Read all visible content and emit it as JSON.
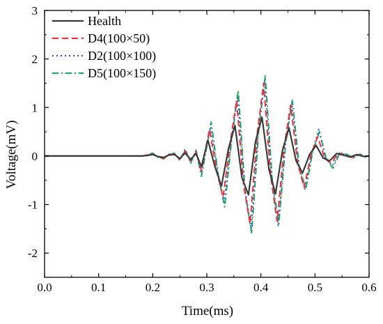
{
  "chart_data": {
    "type": "line",
    "title": "",
    "xlabel": "Time(ms)",
    "ylabel": "Voltage(mV)",
    "xlim": [
      0.0,
      0.6
    ],
    "ylim": [
      -2.5,
      3.0
    ],
    "xticks": [
      "0.0",
      "0.1",
      "0.2",
      "0.3",
      "0.4",
      "0.5",
      "0.6"
    ],
    "yticks": [
      "-2",
      "-1",
      "0",
      "1",
      "2",
      "3"
    ],
    "grid": false,
    "legend_position": "top-left",
    "series": [
      {
        "name": "Health",
        "color": "#3a3a3a",
        "dash": "solid",
        "x": [
          0.0,
          0.15,
          0.18,
          0.19,
          0.2,
          0.21,
          0.22,
          0.23,
          0.24,
          0.25,
          0.26,
          0.27,
          0.28,
          0.29,
          0.302,
          0.315,
          0.327,
          0.34,
          0.352,
          0.365,
          0.377,
          0.39,
          0.402,
          0.415,
          0.427,
          0.44,
          0.452,
          0.465,
          0.477,
          0.49,
          0.502,
          0.515,
          0.527,
          0.54,
          0.552,
          0.565,
          0.577,
          0.59,
          0.6
        ],
        "y": [
          0.0,
          0.0,
          0.0,
          0.01,
          0.03,
          -0.01,
          -0.03,
          0.02,
          0.03,
          -0.05,
          0.06,
          -0.07,
          0.05,
          -0.22,
          0.33,
          -0.22,
          -0.62,
          0.15,
          0.63,
          -0.45,
          -0.8,
          0.3,
          0.8,
          -0.28,
          -0.78,
          0.12,
          0.58,
          -0.1,
          -0.35,
          0.03,
          0.22,
          -0.04,
          -0.1,
          0.05,
          0.02,
          -0.02,
          0.03,
          -0.01,
          0.0
        ]
      },
      {
        "name": "D4(100×50)",
        "color": "#e8343a",
        "dash": "dashed",
        "x": [
          0.0,
          0.15,
          0.18,
          0.19,
          0.2,
          0.21,
          0.22,
          0.23,
          0.24,
          0.25,
          0.26,
          0.27,
          0.28,
          0.29,
          0.305,
          0.318,
          0.33,
          0.343,
          0.355,
          0.368,
          0.38,
          0.393,
          0.405,
          0.418,
          0.43,
          0.443,
          0.455,
          0.468,
          0.48,
          0.493,
          0.505,
          0.518,
          0.53,
          0.543,
          0.555,
          0.568,
          0.58,
          0.59,
          0.6
        ],
        "y": [
          0.0,
          0.0,
          0.0,
          0.02,
          0.04,
          -0.02,
          -0.05,
          0.03,
          0.04,
          -0.07,
          0.1,
          -0.1,
          0.08,
          -0.3,
          0.55,
          -0.3,
          -0.85,
          0.25,
          1.15,
          -0.6,
          -1.4,
          0.45,
          1.5,
          -0.4,
          -1.35,
          0.2,
          1.05,
          -0.15,
          -0.65,
          0.05,
          0.4,
          -0.05,
          -0.15,
          0.06,
          0.02,
          -0.03,
          0.03,
          -0.01,
          0.0
        ]
      },
      {
        "name": "D2(100×100)",
        "color": "#2b5fce",
        "dash": "dotted",
        "x": [
          0.0,
          0.15,
          0.18,
          0.19,
          0.2,
          0.21,
          0.22,
          0.23,
          0.24,
          0.25,
          0.26,
          0.27,
          0.28,
          0.29,
          0.307,
          0.32,
          0.332,
          0.345,
          0.357,
          0.37,
          0.382,
          0.395,
          0.407,
          0.42,
          0.432,
          0.445,
          0.457,
          0.47,
          0.482,
          0.495,
          0.507,
          0.52,
          0.532,
          0.545,
          0.557,
          0.57,
          0.582,
          0.592,
          0.6
        ],
        "y": [
          0.0,
          0.0,
          0.0,
          0.02,
          0.05,
          -0.02,
          -0.05,
          0.03,
          0.05,
          -0.08,
          0.12,
          -0.12,
          0.1,
          -0.35,
          0.6,
          -0.32,
          -0.95,
          0.3,
          1.2,
          -0.65,
          -1.5,
          0.5,
          1.55,
          -0.45,
          -1.45,
          0.25,
          1.1,
          -0.2,
          -0.7,
          0.08,
          0.55,
          -0.06,
          -0.2,
          0.06,
          0.03,
          -0.03,
          0.03,
          -0.01,
          0.0
        ]
      },
      {
        "name": "D5(100×150)",
        "color": "#1fa65a",
        "dash": "dashdot",
        "x": [
          0.0,
          0.15,
          0.18,
          0.19,
          0.2,
          0.21,
          0.22,
          0.23,
          0.24,
          0.25,
          0.26,
          0.27,
          0.28,
          0.29,
          0.308,
          0.321,
          0.333,
          0.346,
          0.358,
          0.371,
          0.383,
          0.396,
          0.408,
          0.421,
          0.433,
          0.446,
          0.458,
          0.471,
          0.483,
          0.496,
          0.508,
          0.521,
          0.533,
          0.546,
          0.558,
          0.571,
          0.583,
          0.593,
          0.6
        ],
        "y": [
          0.0,
          0.0,
          0.0,
          0.03,
          0.06,
          -0.03,
          -0.06,
          0.04,
          0.06,
          -0.1,
          0.15,
          -0.15,
          0.12,
          -0.42,
          0.7,
          -0.38,
          -1.05,
          0.35,
          1.35,
          -0.75,
          -1.6,
          0.55,
          1.65,
          -0.5,
          -1.4,
          0.28,
          1.15,
          -0.22,
          -0.68,
          0.1,
          0.5,
          -0.06,
          -0.25,
          0.07,
          0.04,
          -0.04,
          0.04,
          -0.02,
          0.0
        ]
      }
    ]
  }
}
